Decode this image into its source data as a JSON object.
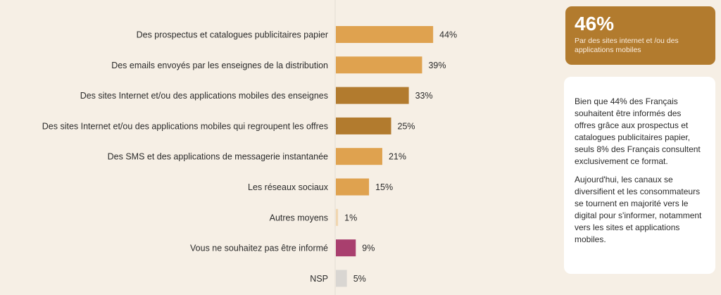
{
  "chart_data": {
    "type": "bar",
    "orientation": "horizontal",
    "categories": [
      "Des prospectus et catalogues publicitaires papier",
      "Des emails envoyés par les enseignes de la distribution",
      "Des sites Internet et/ou des applications mobiles des enseignes",
      "Des sites Internet et/ou des applications mobiles qui regroupent les offres",
      "Des SMS et des applications de messagerie instantanée",
      "Les réseaux sociaux",
      "Autres moyens",
      "Vous ne souhaitez pas être informé",
      "NSP"
    ],
    "values": [
      44,
      39,
      33,
      25,
      21,
      15,
      1,
      9,
      5
    ],
    "value_labels": [
      "44%",
      "39%",
      "33%",
      "25%",
      "21%",
      "15%",
      "1%",
      "9%",
      "5%"
    ],
    "colors": [
      "#dfa24f",
      "#dfa24f",
      "#b27b2e",
      "#b27b2e",
      "#dfa24f",
      "#dfa24f",
      "#f0d6b0",
      "#a93f6e",
      "#d9d6d2"
    ],
    "xlim": [
      0,
      100
    ],
    "grid": false
  },
  "kpi": {
    "value": "46%",
    "text": "Par des sites internet et /ou des applications mobiles"
  },
  "note": {
    "p1": "Bien que 44% des Français souhaitent être informés des offres grâce aux prospectus et catalogues publicitaires papier, seuls 8% des Français consultent exclusivement ce format.",
    "p2": "Aujourd'hui, les canaux se diversifient et les consommateurs se tournent en majorité vers le digital pour s'informer, notamment vers les sites et applications mobiles."
  }
}
